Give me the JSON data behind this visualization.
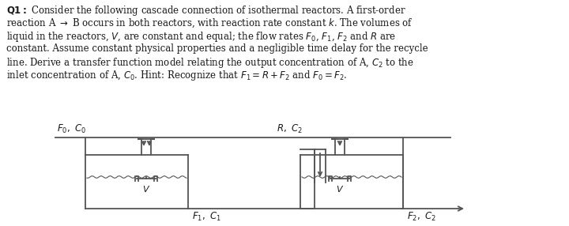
{
  "background_color": "#ffffff",
  "text_color": "#1a1a1a",
  "line_color": "#555555",
  "fig_width": 7.2,
  "fig_height": 2.86,
  "dpi": 100,
  "para_lines": [
    "\\textbf{Q1:} Consider the following cascade connection of isothermal reactors. A first-order",
    "reaction A $\\rightarrow$ B occurs in both reactors, with reaction rate constant $k$. The volumes of",
    "liquid in the reactors, $V$, are constant and equal; the flow rates $F_0$, $F_1$, $F_2$ and $R$ are",
    "constant. Assume constant physical properties and a negligible time delay for the recycle",
    "line. Derive a transfer function model relating the output concentration of A, $C_2$ to the",
    "inlet concentration of A, $C_0$. Hint: Recognize that $F_1 = R + F_2$ and $F_0 = F_2$."
  ]
}
